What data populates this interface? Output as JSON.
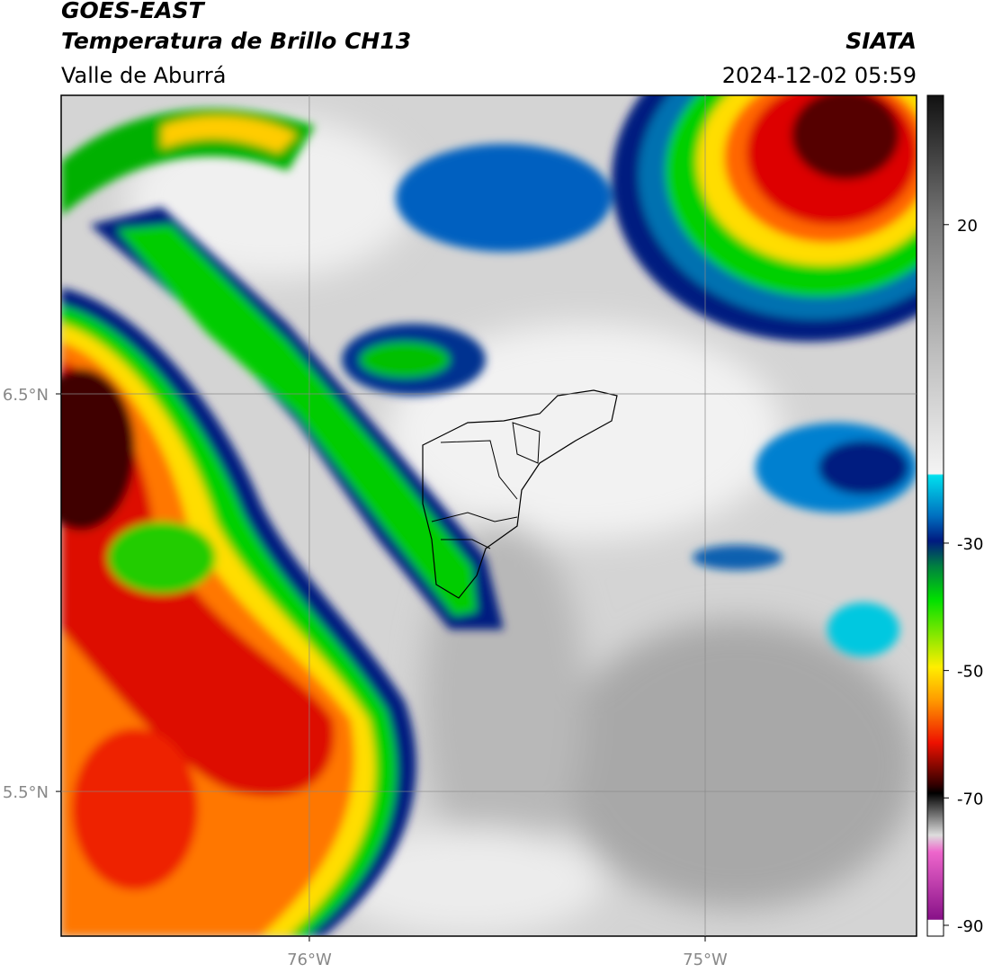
{
  "header": {
    "title": "GOES-EAST",
    "subtitle": "Temperatura de Brillo CH13",
    "source": "SIATA",
    "region": "Valle de Aburrá",
    "datetime": "2024-12-02 05:59"
  },
  "map": {
    "xlim": [
      -76.627,
      -74.466
    ],
    "ylim": [
      5.136,
      7.251
    ],
    "xticks": [
      {
        "value": -76,
        "label": "76°W"
      },
      {
        "value": -75,
        "label": "75°W"
      }
    ],
    "yticks": [
      {
        "value": 6.5,
        "label": "6.5°N"
      },
      {
        "value": 5.5,
        "label": "5.5°N"
      }
    ],
    "grid": true
  },
  "colorbar": {
    "lim": [
      -91.7,
      40.3
    ],
    "ticks": [
      20,
      -30,
      -50,
      -70,
      -90
    ]
  }
}
